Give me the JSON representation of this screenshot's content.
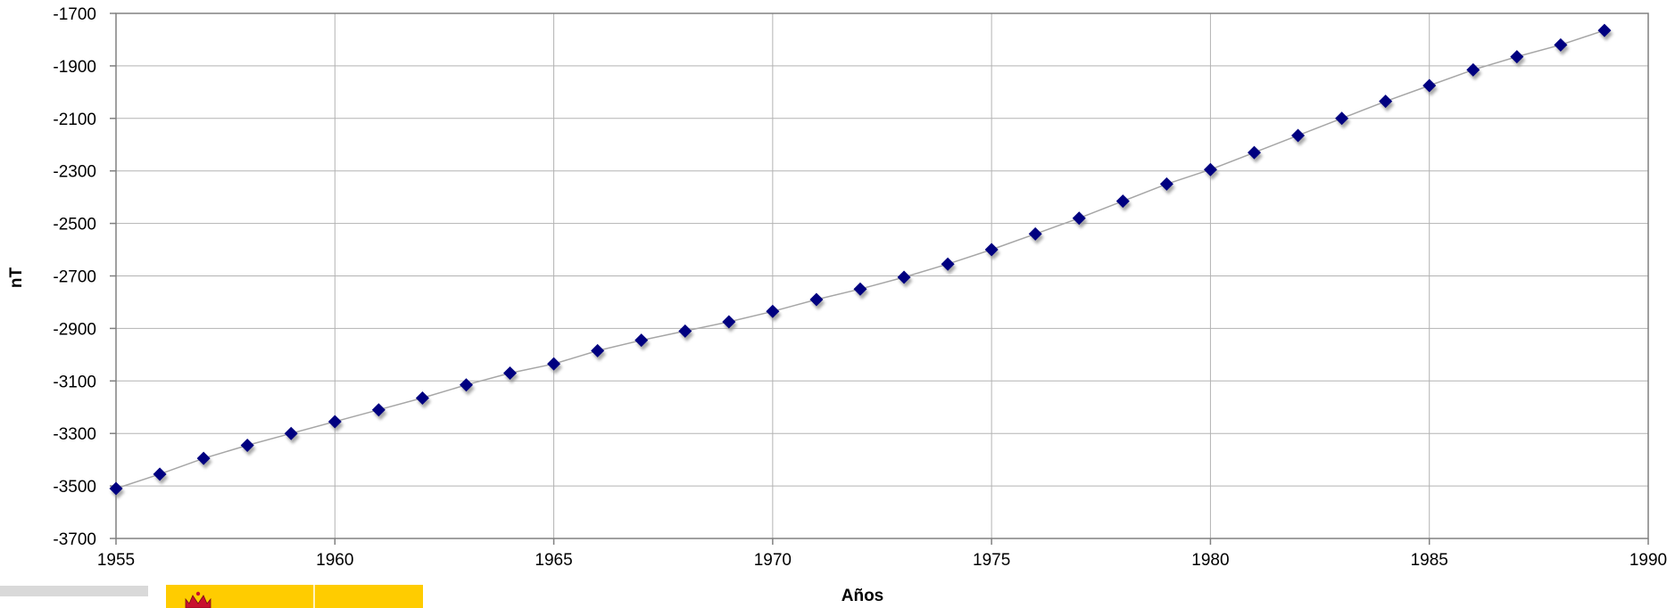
{
  "chart_data": {
    "type": "scatter",
    "title": "",
    "xlabel": "Años",
    "ylabel": "nT",
    "xlim": [
      1955,
      1990
    ],
    "ylim": [
      -3700,
      -1700
    ],
    "x_ticks": [
      1955,
      1960,
      1965,
      1970,
      1975,
      1980,
      1985,
      1990
    ],
    "y_ticks": [
      -1700,
      -1900,
      -2100,
      -2300,
      -2500,
      -2700,
      -2900,
      -3100,
      -3300,
      -3500,
      -3700
    ],
    "grid": true,
    "legend": "none",
    "connecting_line": true,
    "series": [
      {
        "x": [
          1955,
          1956,
          1957,
          1958,
          1959,
          1960,
          1961,
          1962,
          1963,
          1964,
          1965,
          1966,
          1967,
          1968,
          1969,
          1970,
          1971,
          1972,
          1973,
          1974,
          1975,
          1976,
          1977,
          1978,
          1979,
          1980,
          1981,
          1982,
          1983,
          1984,
          1985,
          1986,
          1987,
          1988,
          1989
        ],
        "y": [
          -3510,
          -3455,
          -3395,
          -3345,
          -3300,
          -3255,
          -3210,
          -3165,
          -3115,
          -3070,
          -3035,
          -2985,
          -2945,
          -2910,
          -2875,
          -2835,
          -2790,
          -2750,
          -2705,
          -2655,
          -2600,
          -2540,
          -2480,
          -2415,
          -2350,
          -2295,
          -2230,
          -2165,
          -2100,
          -2035,
          -1975,
          -1915,
          -1865,
          -1820,
          -1765
        ]
      }
    ],
    "colors": {
      "marker": "#000080",
      "line": "#a6a6a6",
      "grid": "#b3b3b3",
      "axis": "#808080",
      "shadow": "#8c8c8c"
    }
  },
  "footer": {
    "gray_bar_color": "#d9d9d9",
    "yellow_block_color": "#ffcc00",
    "logo_icon": "crown-crest-icon"
  }
}
